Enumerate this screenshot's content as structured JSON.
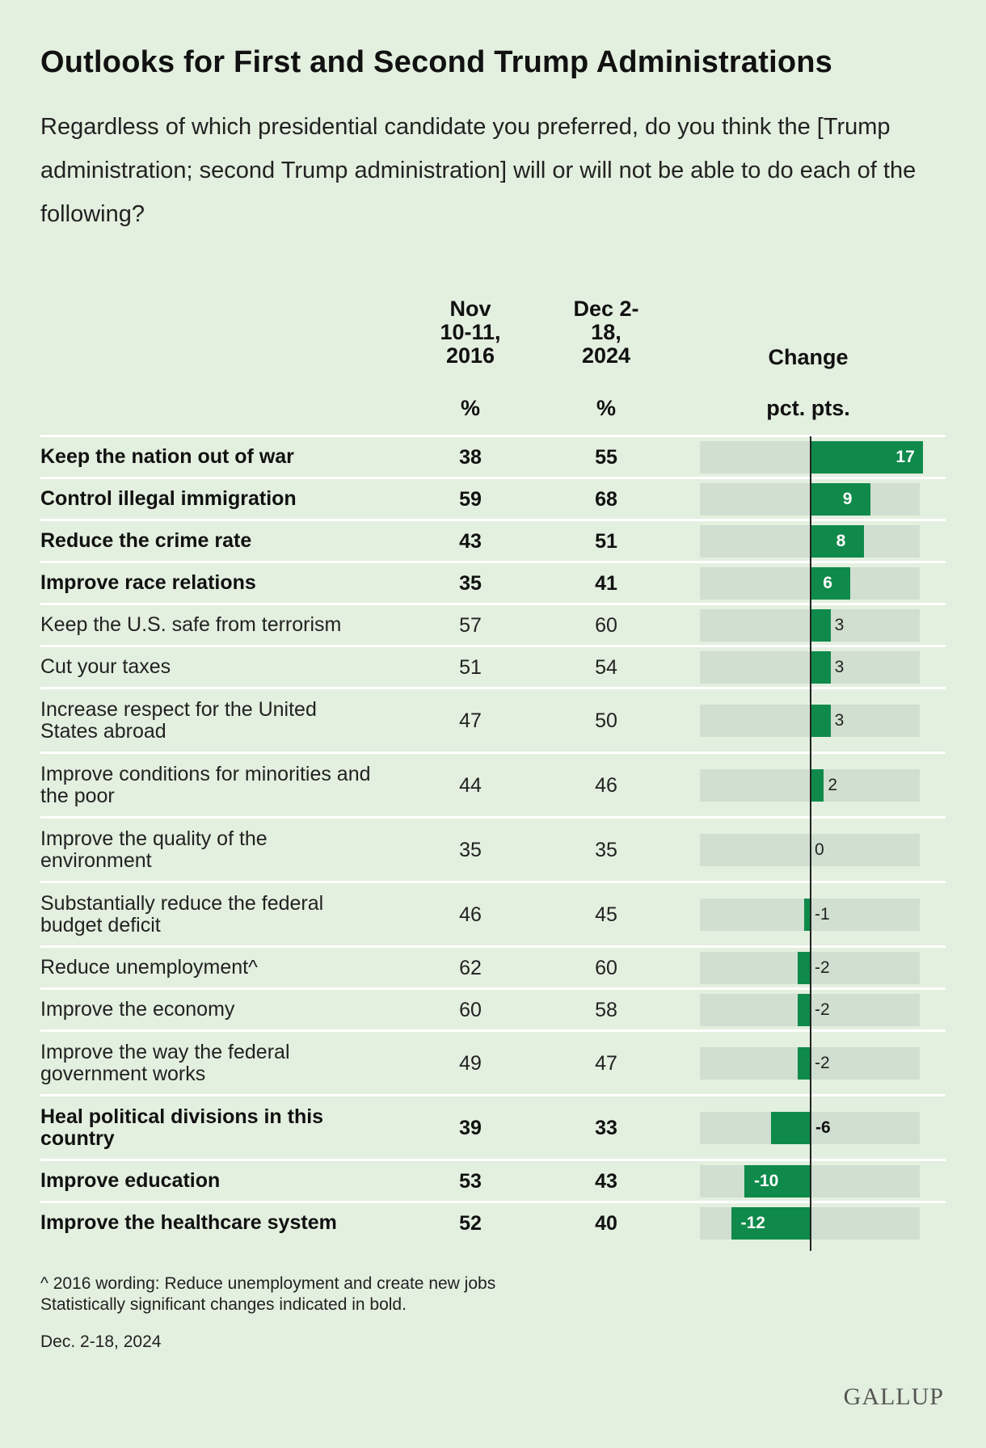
{
  "title": "Outlooks for First and Second Trump Administrations",
  "subtitle": "Regardless of which presidential candidate you preferred, do you think the [Trump administration; second Trump administration] will or will not be able to do each of the following?",
  "columns": {
    "col1": "Nov\n10-11,\n2016",
    "col2": "Dec 2-\n18,\n2024",
    "change": "Change",
    "unit1": "%",
    "unit2": "%",
    "unit_change": "pct. pts."
  },
  "chart_data": {
    "type": "bar",
    "title": "Outlooks for First and Second Trump Administrations",
    "xlabel": "Change",
    "ylabel": "",
    "unit": "pct. pts.",
    "xlim": [
      -12,
      17
    ],
    "categories": [
      "Keep the nation out of war",
      "Control illegal immigration",
      "Reduce the crime rate",
      "Improve race relations",
      "Keep the U.S. safe from terrorism",
      "Cut your taxes",
      "Increase respect for the United States abroad",
      "Improve conditions for minorities and the poor",
      "Improve the quality of the environment",
      "Substantially reduce the federal budget deficit",
      "Reduce unemployment^",
      "Improve the economy",
      "Improve the way the federal government works",
      "Heal political divisions in this country",
      "Improve education",
      "Improve the healthcare system"
    ],
    "series": [
      {
        "name": "Nov 10-11, 2016",
        "values": [
          38,
          59,
          43,
          35,
          57,
          51,
          47,
          44,
          35,
          46,
          62,
          60,
          49,
          39,
          53,
          52
        ]
      },
      {
        "name": "Dec 2-18, 2024",
        "values": [
          55,
          68,
          51,
          41,
          60,
          54,
          50,
          46,
          35,
          45,
          60,
          58,
          47,
          33,
          43,
          40
        ]
      },
      {
        "name": "Change",
        "values": [
          17,
          9,
          8,
          6,
          3,
          3,
          3,
          2,
          0,
          -1,
          -2,
          -2,
          -2,
          -6,
          -10,
          -12
        ]
      }
    ],
    "significant": [
      true,
      true,
      true,
      true,
      false,
      false,
      false,
      false,
      false,
      false,
      false,
      false,
      false,
      true,
      true,
      true
    ]
  },
  "footnotes": {
    "note1": "^ 2016 wording: Reduce unemployment and create new jobs",
    "note2": "Statistically significant changes indicated in bold.",
    "date": "Dec. 2-18, 2024"
  },
  "logo": "GALLUP",
  "colors": {
    "background": "#e3efdf",
    "bar": "#0f8a4a",
    "track": "#d0dfd0"
  }
}
